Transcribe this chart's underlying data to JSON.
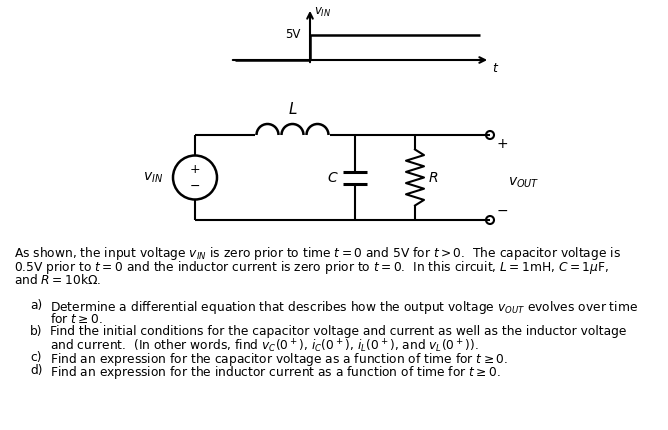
{
  "bg_color": "#ffffff",
  "fig_width": 6.68,
  "fig_height": 4.3,
  "dpi": 100,
  "paragraph_line1": "As shown, the input voltage $v_{IN}$ is zero prior to time $t = 0$ and 5V for $t > 0$.  The capacitor voltage is",
  "paragraph_line2": "0.5V prior to $t = 0$ and the inductor current is zero prior to $t = 0$.  In this circuit, $L = 1$mH, $C = 1\\mu$F,",
  "paragraph_line3": "and $R = 10$k$\\Omega$.",
  "items": [
    {
      "label": "a)",
      "text": "Determine a differential equation that describes how the output voltage $v_{OUT}$ evolves over time"
    },
    {
      "label": "",
      "text": "for $t \\geq 0$."
    },
    {
      "label": "b)",
      "text": "Find the initial conditions for the capacitor voltage and current as well as the inductor voltage"
    },
    {
      "label": "",
      "text": "and current.  (In other words, find $v_C(0^+)$, $i_C(0^+)$, $i_L(0^+)$, and $v_L(0^+)$)."
    },
    {
      "label": "c)",
      "text": "Find an expression for the capacitor voltage as a function of time for $t \\geq 0$."
    },
    {
      "label": "d)",
      "text": "Find an expression for the inductor current as a function of time for $t \\geq 0$."
    }
  ]
}
